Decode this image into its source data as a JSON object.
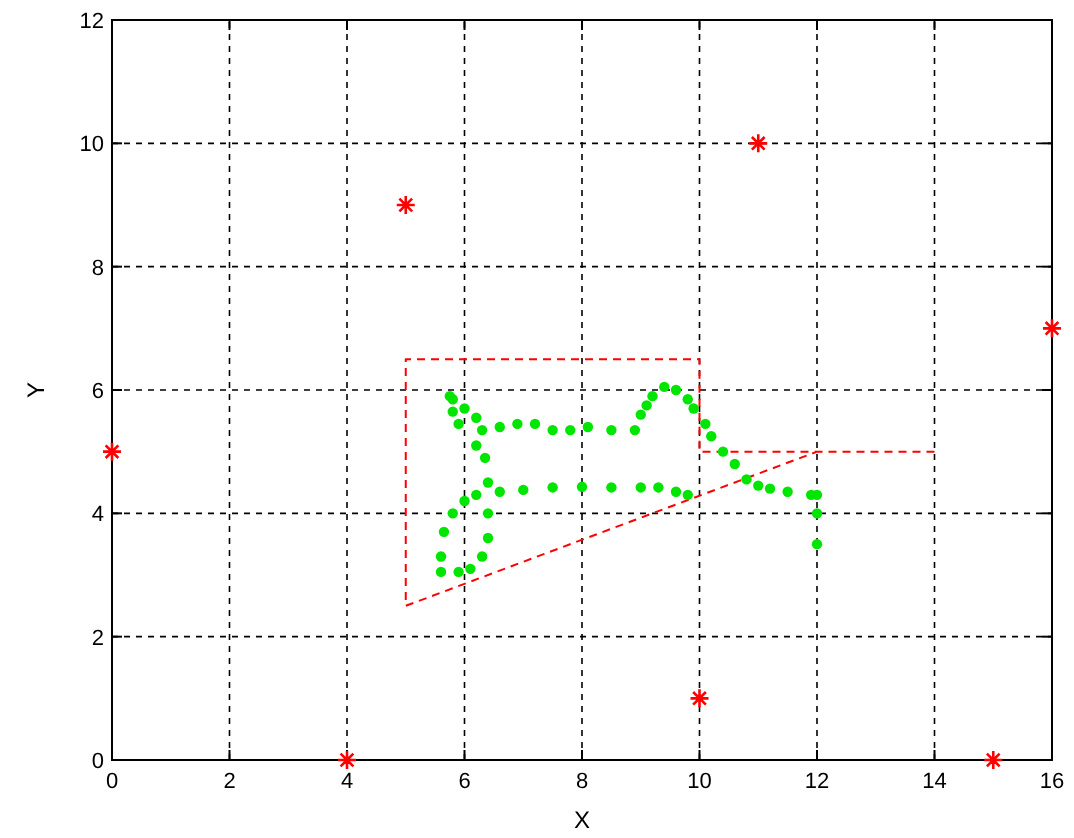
{
  "chart_data": {
    "type": "scatter",
    "xlabel": "X",
    "ylabel": "Y",
    "xlim": [
      0,
      16
    ],
    "ylim": [
      0,
      12
    ],
    "xticks": [
      0,
      2,
      4,
      6,
      8,
      10,
      12,
      14,
      16
    ],
    "yticks": [
      0,
      2,
      4,
      6,
      8,
      10,
      12
    ],
    "grid": true,
    "series": [
      {
        "type": "line",
        "color": "#ff0000",
        "line_style": "dashed",
        "marker": "none",
        "x": [
          14,
          10,
          10,
          5,
          5,
          12
        ],
        "values": [
          5,
          5,
          6.5,
          6.5,
          2.5,
          5
        ]
      },
      {
        "type": "scatter",
        "color": "#ff0000",
        "marker": "cross",
        "x": [
          0,
          4,
          5,
          10,
          11,
          15,
          16
        ],
        "values": [
          5,
          0,
          9,
          1,
          10,
          0,
          7
        ]
      },
      {
        "color": "#00e600",
        "marker": "circle",
        "x": [
          12,
          12,
          12,
          11.9,
          11.5,
          11.2,
          11,
          10.8,
          10.6,
          10.4,
          10.2,
          10.1,
          9.9,
          9.8,
          9.6,
          9.4,
          9.2,
          9.1,
          9.0,
          8.9,
          8.5,
          8.1,
          7.8,
          7.5,
          7.2,
          6.9,
          6.6,
          6.3,
          6.2,
          6.0,
          5.8,
          5.75,
          5.8,
          5.9,
          6.2,
          6.35,
          6.4,
          6.4,
          6.4,
          6.3,
          6.1,
          5.9,
          5.6,
          5.6,
          5.65,
          5.8,
          6.0,
          6.2,
          6.6,
          7.0,
          7.5,
          8.0,
          8.5,
          9.0,
          9.3,
          9.6,
          9.8
        ],
        "values": [
          3.5,
          4.0,
          4.3,
          4.3,
          4.35,
          4.4,
          4.45,
          4.55,
          4.8,
          5.0,
          5.25,
          5.45,
          5.7,
          5.85,
          6.0,
          6.05,
          5.9,
          5.75,
          5.6,
          5.35,
          5.35,
          5.4,
          5.35,
          5.35,
          5.45,
          5.45,
          5.4,
          5.35,
          5.55,
          5.7,
          5.85,
          5.9,
          5.65,
          5.45,
          5.1,
          4.9,
          4.5,
          4.0,
          3.6,
          3.3,
          3.1,
          3.05,
          3.05,
          3.3,
          3.7,
          4.0,
          4.2,
          4.3,
          4.35,
          4.38,
          4.42,
          4.43,
          4.42,
          4.42,
          4.42,
          4.35,
          4.3
        ]
      }
    ]
  }
}
